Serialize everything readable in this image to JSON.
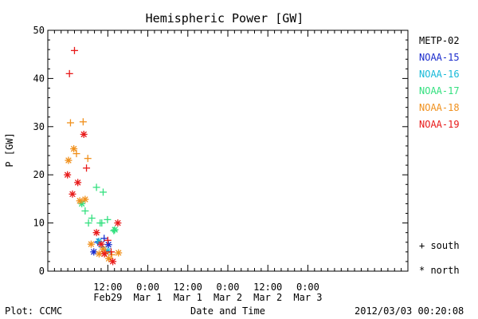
{
  "chart_data": {
    "type": "scatter",
    "title": "Hemispheric Power [GW]",
    "xlabel": "Date and Time",
    "ylabel": "P [GW]",
    "ylim": [
      0,
      50
    ],
    "yticks": [
      0,
      10,
      20,
      30,
      40,
      50
    ],
    "xlim": [
      0,
      108
    ],
    "xlim_note": "hours since the first tick-free start of axis",
    "xticks": [
      {
        "x": 18,
        "line1": "12:00",
        "line2": "Feb29"
      },
      {
        "x": 30,
        "line1": "0:00",
        "line2": "Mar 1"
      },
      {
        "x": 42,
        "line1": "12:00",
        "line2": "Mar 1"
      },
      {
        "x": 54,
        "line1": "0:00",
        "line2": "Mar 2"
      },
      {
        "x": 66,
        "line1": "12:00",
        "line2": "Mar 2"
      },
      {
        "x": 78,
        "line1": "0:00",
        "line2": "Mar 3"
      }
    ],
    "grid": false,
    "legend_position": "right",
    "symbol_legend": [
      {
        "marker": "+",
        "label": "south"
      },
      {
        "marker": "*",
        "label": "north"
      }
    ],
    "series": [
      {
        "name": "METP-02",
        "color": "#000000",
        "points": []
      },
      {
        "name": "NOAA-15",
        "color": "#1a2bcc",
        "points": [
          {
            "x": 13.8,
            "y": 4.0,
            "m": "*"
          },
          {
            "x": 15.0,
            "y": 6.0,
            "m": "+"
          },
          {
            "x": 16.9,
            "y": 6.8,
            "m": "+"
          },
          {
            "x": 18.2,
            "y": 5.5,
            "m": "*"
          }
        ]
      },
      {
        "name": "NOAA-16",
        "color": "#17b9d8",
        "points": [
          {
            "x": 15.3,
            "y": 6.2,
            "m": "*"
          },
          {
            "x": 16.4,
            "y": 5.0,
            "m": "+"
          },
          {
            "x": 18.0,
            "y": 4.2,
            "m": "*"
          }
        ]
      },
      {
        "name": "NOAA-17",
        "color": "#33e07f",
        "points": [
          {
            "x": 10.2,
            "y": 14.0,
            "m": "*"
          },
          {
            "x": 11.2,
            "y": 12.5,
            "m": "+"
          },
          {
            "x": 12.2,
            "y": 10.0,
            "m": "+"
          },
          {
            "x": 13.2,
            "y": 11.0,
            "m": "+"
          },
          {
            "x": 14.6,
            "y": 17.4,
            "m": "+"
          },
          {
            "x": 15.7,
            "y": 10.0,
            "m": "+"
          },
          {
            "x": 16.2,
            "y": 10.0,
            "m": "+"
          },
          {
            "x": 16.6,
            "y": 16.4,
            "m": "+"
          },
          {
            "x": 17.9,
            "y": 10.7,
            "m": "+"
          },
          {
            "x": 19.8,
            "y": 8.4,
            "m": "+"
          },
          {
            "x": 20.1,
            "y": 8.6,
            "m": "*"
          }
        ]
      },
      {
        "name": "NOAA-18",
        "color": "#f0901c",
        "points": [
          {
            "x": 6.2,
            "y": 23.0,
            "m": "*"
          },
          {
            "x": 6.8,
            "y": 30.8,
            "m": "+"
          },
          {
            "x": 7.8,
            "y": 25.4,
            "m": "*"
          },
          {
            "x": 8.6,
            "y": 24.4,
            "m": "+"
          },
          {
            "x": 9.6,
            "y": 14.6,
            "m": "*"
          },
          {
            "x": 10.6,
            "y": 31.0,
            "m": "+"
          },
          {
            "x": 11.2,
            "y": 14.9,
            "m": "*"
          },
          {
            "x": 12.0,
            "y": 23.4,
            "m": "+"
          },
          {
            "x": 13.0,
            "y": 5.6,
            "m": "*"
          },
          {
            "x": 15.4,
            "y": 3.6,
            "m": "*"
          },
          {
            "x": 16.6,
            "y": 4.6,
            "m": "*"
          },
          {
            "x": 17.3,
            "y": 3.8,
            "m": "+"
          },
          {
            "x": 18.3,
            "y": 2.6,
            "m": "*"
          },
          {
            "x": 19.2,
            "y": 3.4,
            "m": "+"
          },
          {
            "x": 21.2,
            "y": 3.8,
            "m": "*"
          }
        ]
      },
      {
        "name": "NOAA-19",
        "color": "#e81a1a",
        "points": [
          {
            "x": 5.9,
            "y": 20.0,
            "m": "*"
          },
          {
            "x": 6.5,
            "y": 41.0,
            "m": "+"
          },
          {
            "x": 7.4,
            "y": 16.0,
            "m": "*"
          },
          {
            "x": 8.0,
            "y": 45.8,
            "m": "+"
          },
          {
            "x": 9.0,
            "y": 18.4,
            "m": "*"
          },
          {
            "x": 10.8,
            "y": 28.4,
            "m": "*"
          },
          {
            "x": 11.6,
            "y": 21.4,
            "m": "+"
          },
          {
            "x": 14.6,
            "y": 8.0,
            "m": "*"
          },
          {
            "x": 16.0,
            "y": 5.6,
            "m": "*"
          },
          {
            "x": 17.0,
            "y": 3.6,
            "m": "*"
          },
          {
            "x": 18.0,
            "y": 6.4,
            "m": "+"
          },
          {
            "x": 19.0,
            "y": 4.0,
            "m": "+"
          },
          {
            "x": 19.5,
            "y": 2.0,
            "m": "*"
          },
          {
            "x": 21.0,
            "y": 10.0,
            "m": "*"
          }
        ]
      }
    ]
  },
  "footer": {
    "left": "Plot: CCMC",
    "right": "2012/03/03 00:20:08"
  }
}
